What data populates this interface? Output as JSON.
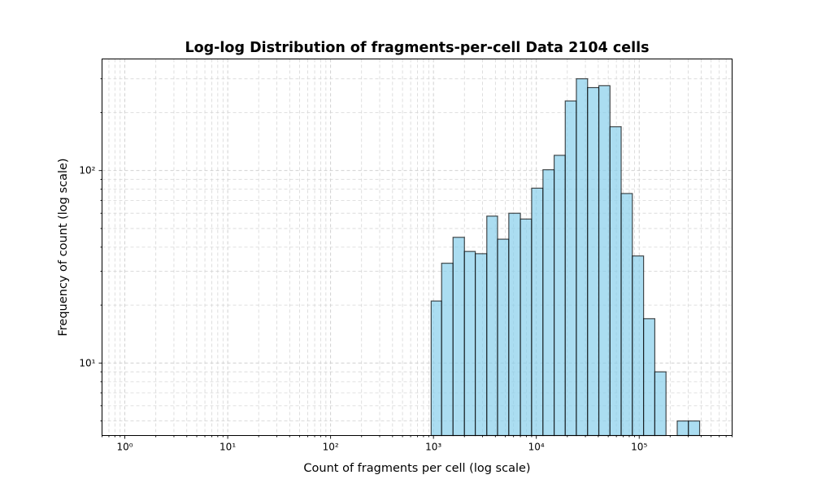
{
  "chart_data": {
    "type": "bar",
    "title": "Log-log Distribution of fragments-per-cell Data 2104 cells",
    "xlabel": "Count of fragments per cell (log scale)",
    "ylabel": "Frequency of count (log scale)",
    "xscale": "log",
    "yscale": "log",
    "xlim": [
      0.6,
      800000
    ],
    "ylim": [
      4.2,
      380
    ],
    "grid": true,
    "grid_which": "both",
    "bar_color": "#87CEEB",
    "edge_color": "#000000",
    "x_ticks": [
      {
        "value": 1,
        "label": "10⁰"
      },
      {
        "value": 10,
        "label": "10¹"
      },
      {
        "value": 100,
        "label": "10²"
      },
      {
        "value": 1000,
        "label": "10³"
      },
      {
        "value": 10000,
        "label": "10⁴"
      },
      {
        "value": 100000,
        "label": "10⁵"
      }
    ],
    "y_ticks": [
      {
        "value": 10,
        "label": "10¹"
      },
      {
        "value": 100,
        "label": "10²"
      }
    ],
    "bin_edges": [
      950,
      1200,
      1550,
      2000,
      2550,
      3300,
      4200,
      5400,
      7000,
      9000,
      11600,
      14900,
      19100,
      24500,
      31500,
      40500,
      52000,
      66800,
      85800,
      110300,
      141800,
      182200,
      234200,
      300900,
      386700
    ],
    "counts": [
      21,
      33,
      45,
      38,
      37,
      58,
      44,
      60,
      56,
      81,
      101,
      120,
      230,
      300,
      270,
      276,
      169,
      76,
      36,
      17,
      9,
      0,
      5,
      5
    ]
  }
}
